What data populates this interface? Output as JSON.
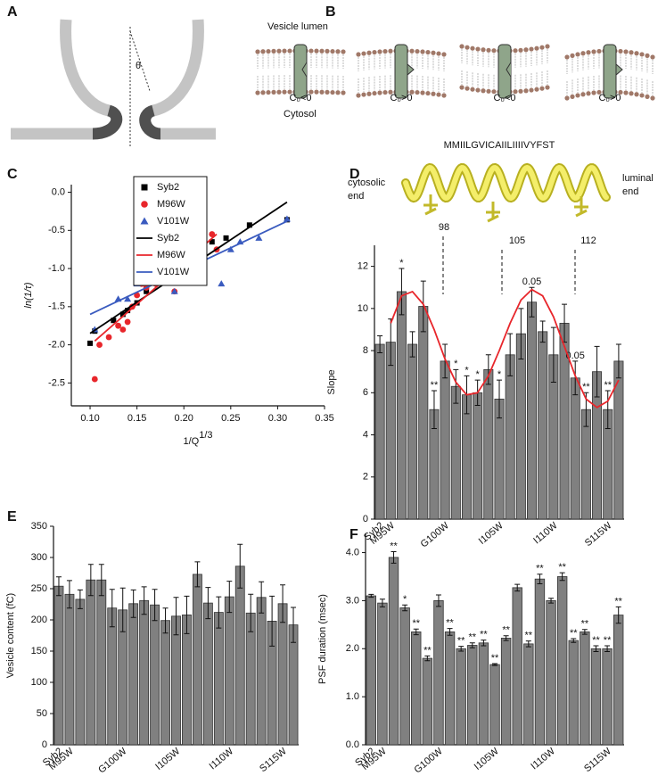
{
  "diagrams": {
    "A": {
      "label": "A",
      "theta": "θ"
    },
    "B": {
      "label": "B",
      "lumen": "Vesicle lumen",
      "cytosol": "Cytosol",
      "curvatures": [
        "C₀<0",
        "C₀>0",
        "C₀<0",
        "C₀>0"
      ]
    }
  },
  "chart_data": [
    {
      "type": "scatter",
      "panel": "C",
      "y_label": "ln(1/τ)",
      "x_label": "1/Q",
      "x_label_sup": "1/3",
      "xlim": [
        0.08,
        0.35
      ],
      "ylim": [
        -2.8,
        0.1
      ],
      "xticks": [
        {
          "value": 0.1,
          "label": "0.10"
        },
        0.15,
        {
          "value": 0.2,
          "label": "0.20"
        },
        0.25,
        {
          "value": 0.3,
          "label": "0.30"
        },
        0.35
      ],
      "yticks": [
        -2.5,
        {
          "value": -2,
          "label": "-2.0"
        },
        -1.5,
        {
          "value": -1,
          "label": "-1.0"
        },
        -0.5,
        {
          "value": 0,
          "label": "0.0"
        }
      ],
      "series": [
        {
          "name": "Syb2",
          "color": "#000000",
          "marker": "square",
          "x": [
            0.1,
            0.105,
            0.125,
            0.135,
            0.14,
            0.15,
            0.16,
            0.175,
            0.19,
            0.205,
            0.22,
            0.23,
            0.245,
            0.27,
            0.31
          ],
          "values": [
            -1.98,
            -1.82,
            -1.68,
            -1.6,
            -1.55,
            -1.45,
            -1.3,
            -1.1,
            -1.0,
            -0.85,
            -0.75,
            -0.65,
            -0.6,
            -0.43,
            -0.36
          ]
        },
        {
          "name": "M96W",
          "color": "#e8262b",
          "marker": "circle",
          "x": [
            0.105,
            0.11,
            0.12,
            0.13,
            0.135,
            0.14,
            0.145,
            0.15,
            0.155,
            0.16,
            0.165,
            0.17,
            0.175,
            0.18,
            0.185,
            0.19,
            0.2,
            0.205,
            0.21,
            0.215,
            0.23,
            0.235
          ],
          "values": [
            -2.45,
            -2.0,
            -1.9,
            -1.75,
            -1.8,
            -1.7,
            -1.5,
            -1.35,
            -1.2,
            -1.25,
            -1.1,
            -1.2,
            -1.05,
            -0.97,
            -1.15,
            -1.3,
            -0.9,
            -0.8,
            -0.7,
            -0.6,
            -0.55,
            -0.75
          ]
        },
        {
          "name": "V101W",
          "color": "#3a5bbf",
          "marker": "triangle",
          "x": [
            0.105,
            0.13,
            0.14,
            0.15,
            0.16,
            0.17,
            0.175,
            0.18,
            0.185,
            0.19,
            0.195,
            0.21,
            0.22,
            0.24,
            0.25,
            0.26,
            0.28,
            0.31
          ],
          "values": [
            -1.8,
            -1.4,
            -1.4,
            -1.2,
            -1.1,
            -1.05,
            -1.0,
            -1.15,
            -0.95,
            -1.3,
            -1.1,
            -1.05,
            -1.05,
            -1.2,
            -0.75,
            -0.65,
            -0.6,
            -0.35
          ]
        },
        {
          "name": "Syb2",
          "color": "#000000",
          "marker": "line",
          "x": [
            0.1,
            0.31
          ],
          "values": [
            -1.85,
            -0.13
          ]
        },
        {
          "name": "M96W",
          "color": "#e8262b",
          "marker": "line",
          "x": [
            0.105,
            0.235
          ],
          "values": [
            -1.95,
            -0.55
          ]
        },
        {
          "name": "V101W",
          "color": "#3a5bbf",
          "marker": "line",
          "x": [
            0.1,
            0.31
          ],
          "values": [
            -1.6,
            -0.38
          ]
        }
      ]
    },
    {
      "type": "bar",
      "panel": "D",
      "y_label": "Slope",
      "color": "#808080",
      "sequence": "MMIILGVICAIILIIIIVYFST",
      "left_end": [
        "cytosolic",
        "end"
      ],
      "right_end": [
        "luminal",
        "end"
      ],
      "residues": [
        98,
        105,
        112
      ],
      "ylim": [
        0,
        13
      ],
      "yticks": [
        0,
        2,
        4,
        6,
        8,
        10,
        12
      ],
      "categories": [
        "Syb2",
        "M95W",
        null,
        null,
        null,
        null,
        "G100W",
        null,
        null,
        null,
        null,
        "I105W",
        null,
        null,
        null,
        null,
        "I110W",
        null,
        null,
        null,
        null,
        "S115W",
        null
      ],
      "values": [
        8.3,
        8.4,
        10.8,
        8.3,
        10.1,
        5.2,
        7.5,
        6.3,
        5.9,
        6.0,
        7.1,
        5.7,
        7.8,
        8.8,
        10.3,
        8.9,
        7.8,
        9.3,
        6.7,
        5.2,
        7.0,
        5.2,
        7.5
      ],
      "errors": [
        0.4,
        1.1,
        1.1,
        0.6,
        1.2,
        0.9,
        0.8,
        0.8,
        0.9,
        0.6,
        0.7,
        0.9,
        1.0,
        1.2,
        0.7,
        0.5,
        1.3,
        0.9,
        0.8,
        0.8,
        1.2,
        0.9,
        0.8
      ],
      "annotations": [
        null,
        null,
        "*",
        null,
        null,
        "**",
        null,
        "*",
        "*",
        "*",
        null,
        "*",
        null,
        null,
        "0.05",
        null,
        null,
        null,
        "0.05",
        "**",
        null,
        "**",
        null
      ],
      "fit": {
        "color": "#e8262b",
        "values": [
          null,
          9.3,
          10.6,
          10.8,
          10.2,
          9.0,
          7.6,
          6.5,
          5.9,
          6.0,
          6.8,
          8.0,
          9.3,
          10.4,
          10.9,
          10.6,
          9.6,
          8.2,
          6.8,
          5.7,
          5.3,
          5.6,
          6.6
        ]
      }
    },
    {
      "type": "bar",
      "panel": "E",
      "y_label": "Vesicle content (fC)",
      "color": "#808080",
      "ylim": [
        0,
        350
      ],
      "yticks": [
        0,
        50,
        100,
        150,
        200,
        250,
        300,
        350
      ],
      "categories": [
        "Syb2",
        "M95W",
        null,
        null,
        null,
        null,
        "G100W",
        null,
        null,
        null,
        null,
        "I105W",
        null,
        null,
        null,
        null,
        "I110W",
        null,
        null,
        null,
        null,
        "S115W",
        null
      ],
      "values": [
        254,
        241,
        233,
        264,
        264,
        219,
        216,
        226,
        231,
        224,
        199,
        206,
        208,
        273,
        227,
        212,
        237,
        286,
        211,
        236,
        198,
        226,
        192
      ],
      "errors": [
        15,
        22,
        15,
        25,
        25,
        30,
        35,
        22,
        22,
        25,
        20,
        30,
        30,
        20,
        25,
        25,
        25,
        35,
        30,
        25,
        40,
        30,
        28
      ]
    },
    {
      "type": "bar",
      "panel": "F",
      "y_label": "PSF duration (msec)",
      "color": "#808080",
      "ylim": [
        0,
        4.4
      ],
      "yticks": [
        {
          "value": 0,
          "label": "0.0"
        },
        {
          "value": 1,
          "label": "1.0"
        },
        {
          "value": 2,
          "label": "2.0"
        },
        {
          "value": 3,
          "label": "3.0"
        },
        {
          "value": 4,
          "label": "4.0"
        }
      ],
      "categories": [
        "Syb2",
        "M95W",
        null,
        null,
        null,
        null,
        "G100W",
        null,
        null,
        null,
        null,
        "I105W",
        null,
        null,
        null,
        null,
        "I110W",
        null,
        null,
        null,
        null,
        "S115W",
        null
      ],
      "values": [
        3.1,
        2.95,
        3.9,
        2.85,
        2.35,
        1.8,
        3.0,
        2.35,
        2.0,
        2.07,
        2.12,
        1.67,
        2.22,
        3.27,
        2.1,
        3.45,
        3.0,
        3.5,
        2.17,
        2.35,
        2.0,
        2.0,
        2.7
      ],
      "errors": [
        0.03,
        0.08,
        0.12,
        0.06,
        0.06,
        0.05,
        0.12,
        0.07,
        0.05,
        0.05,
        0.06,
        0.02,
        0.05,
        0.07,
        0.06,
        0.1,
        0.05,
        0.08,
        0.04,
        0.05,
        0.06,
        0.06,
        0.17
      ],
      "annotations": [
        null,
        null,
        "**",
        "*",
        "**",
        "**",
        null,
        "**",
        "**",
        "**",
        "**",
        "**",
        "**",
        null,
        "**",
        "**",
        null,
        "**",
        "**",
        "**",
        "**",
        "**",
        "**"
      ]
    }
  ]
}
